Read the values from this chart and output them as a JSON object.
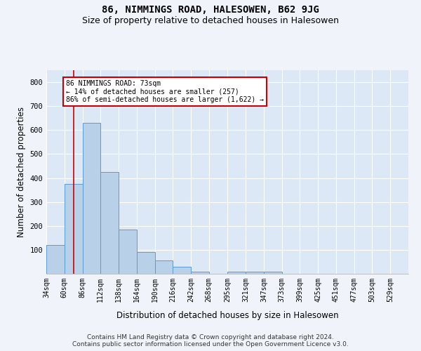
{
  "title": "86, NIMMINGS ROAD, HALESOWEN, B62 9JG",
  "subtitle": "Size of property relative to detached houses in Halesowen",
  "xlabel": "Distribution of detached houses by size in Halesowen",
  "ylabel": "Number of detached properties",
  "bin_edges": [
    34,
    60,
    86,
    112,
    138,
    164,
    190,
    216,
    242,
    268,
    295,
    321,
    347,
    373,
    399,
    425,
    451,
    477,
    503,
    529,
    555
  ],
  "bar_heights": [
    120,
    375,
    630,
    425,
    185,
    90,
    55,
    30,
    10,
    0,
    10,
    10,
    10,
    0,
    0,
    0,
    0,
    0,
    0,
    0
  ],
  "bar_color": "#b8d0e8",
  "bar_edge_color": "#5b9bd5",
  "property_size": 73,
  "property_line_color": "#cc0000",
  "annotation_text": "86 NIMMINGS ROAD: 73sqm\n← 14% of detached houses are smaller (257)\n86% of semi-detached houses are larger (1,622) →",
  "annotation_box_color": "#ffffff",
  "annotation_box_edge_color": "#cc0000",
  "ylim": [
    0,
    850
  ],
  "yticks": [
    100,
    200,
    300,
    400,
    500,
    600,
    700,
    800
  ],
  "background_color": "#f0f4fa",
  "plot_bg_color": "#dce8f5",
  "footer_line1": "Contains HM Land Registry data © Crown copyright and database right 2024.",
  "footer_line2": "Contains public sector information licensed under the Open Government Licence v3.0.",
  "title_fontsize": 10,
  "subtitle_fontsize": 9,
  "tick_label_fontsize": 7,
  "axis_label_fontsize": 8.5,
  "footer_fontsize": 6.5
}
